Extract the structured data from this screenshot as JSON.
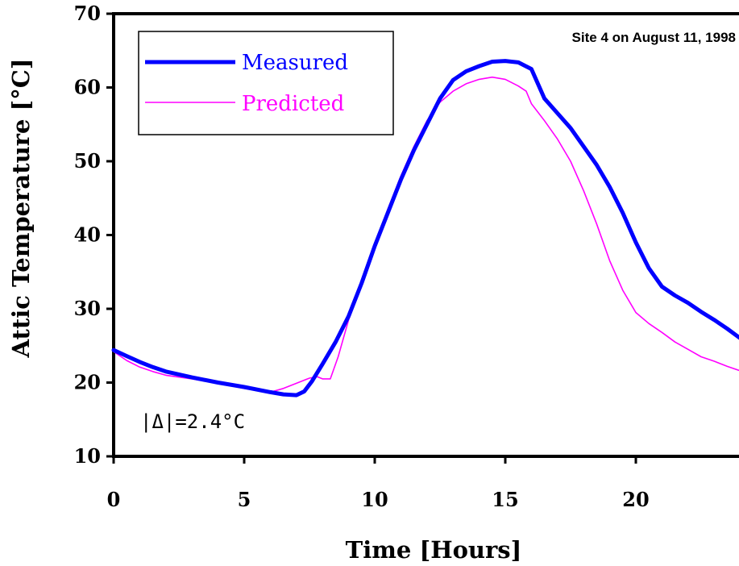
{
  "chart_data": {
    "type": "line",
    "xlabel": "Time [Hours]",
    "ylabel": "Attic Temperature [°C]",
    "xlim": [
      0,
      24
    ],
    "ylim": [
      10,
      70
    ],
    "xticks": [
      "0",
      "5",
      "10",
      "15",
      "20"
    ],
    "yticks": [
      "10",
      "20",
      "30",
      "40",
      "50",
      "60",
      "70"
    ],
    "grid": false,
    "legend_position": "top-left",
    "annotation": "Site 4 on August 11, 1998",
    "statistic": "|Δ|=2.4°C",
    "colors": {
      "measured": "#0000ff",
      "predicted": "#ff00ff",
      "axes": "#000000"
    },
    "series": [
      {
        "name": "Measured",
        "x": [
          0,
          0.5,
          1,
          1.5,
          2,
          3,
          4,
          5,
          6,
          6.5,
          7,
          7.3,
          7.6,
          8,
          8.5,
          9,
          9.5,
          10,
          10.5,
          11,
          11.5,
          12,
          12.5,
          13,
          13.5,
          14,
          14.5,
          15,
          15.5,
          16,
          16.5,
          17,
          17.5,
          18,
          18.5,
          19,
          19.5,
          20,
          20.5,
          21,
          21.5,
          22,
          22.5,
          23,
          23.5,
          24
        ],
        "y": [
          24.4,
          23.6,
          22.8,
          22.1,
          21.5,
          20.7,
          20.0,
          19.4,
          18.7,
          18.4,
          18.3,
          18.8,
          20.2,
          22.5,
          25.5,
          29.0,
          33.5,
          38.5,
          43.0,
          47.5,
          51.5,
          55.0,
          58.5,
          61.0,
          62.2,
          62.9,
          63.5,
          63.6,
          63.4,
          62.5,
          58.5,
          56.5,
          54.5,
          52.0,
          49.5,
          46.5,
          43.0,
          39.0,
          35.5,
          33.0,
          31.8,
          30.8,
          29.6,
          28.5,
          27.3,
          26.0
        ]
      },
      {
        "name": "Predicted",
        "x": [
          0,
          0.5,
          1,
          1.5,
          2,
          3,
          4,
          5,
          6,
          6.5,
          7,
          7.5,
          7.8,
          8,
          8.3,
          8.6,
          9,
          9.5,
          10,
          10.5,
          11,
          11.5,
          12,
          12.5,
          13,
          13.5,
          14,
          14.5,
          15,
          15.5,
          15.8,
          16,
          16.5,
          17,
          17.5,
          18,
          18.5,
          19,
          19.5,
          20,
          20.5,
          21,
          21.5,
          22,
          22.5,
          23,
          23.5,
          24
        ],
        "y": [
          24.2,
          23.0,
          22.1,
          21.5,
          21.0,
          20.5,
          19.9,
          19.2,
          18.7,
          19.2,
          19.9,
          20.6,
          20.8,
          20.5,
          20.5,
          23.5,
          28.5,
          33.5,
          38.5,
          43.5,
          48.0,
          52.0,
          55.5,
          58.0,
          59.5,
          60.5,
          61.1,
          61.4,
          61.1,
          60.2,
          59.5,
          57.8,
          55.5,
          53.0,
          50.0,
          46.0,
          41.5,
          36.5,
          32.5,
          29.5,
          28.0,
          26.8,
          25.5,
          24.5,
          23.5,
          22.9,
          22.2,
          21.6
        ]
      }
    ]
  }
}
